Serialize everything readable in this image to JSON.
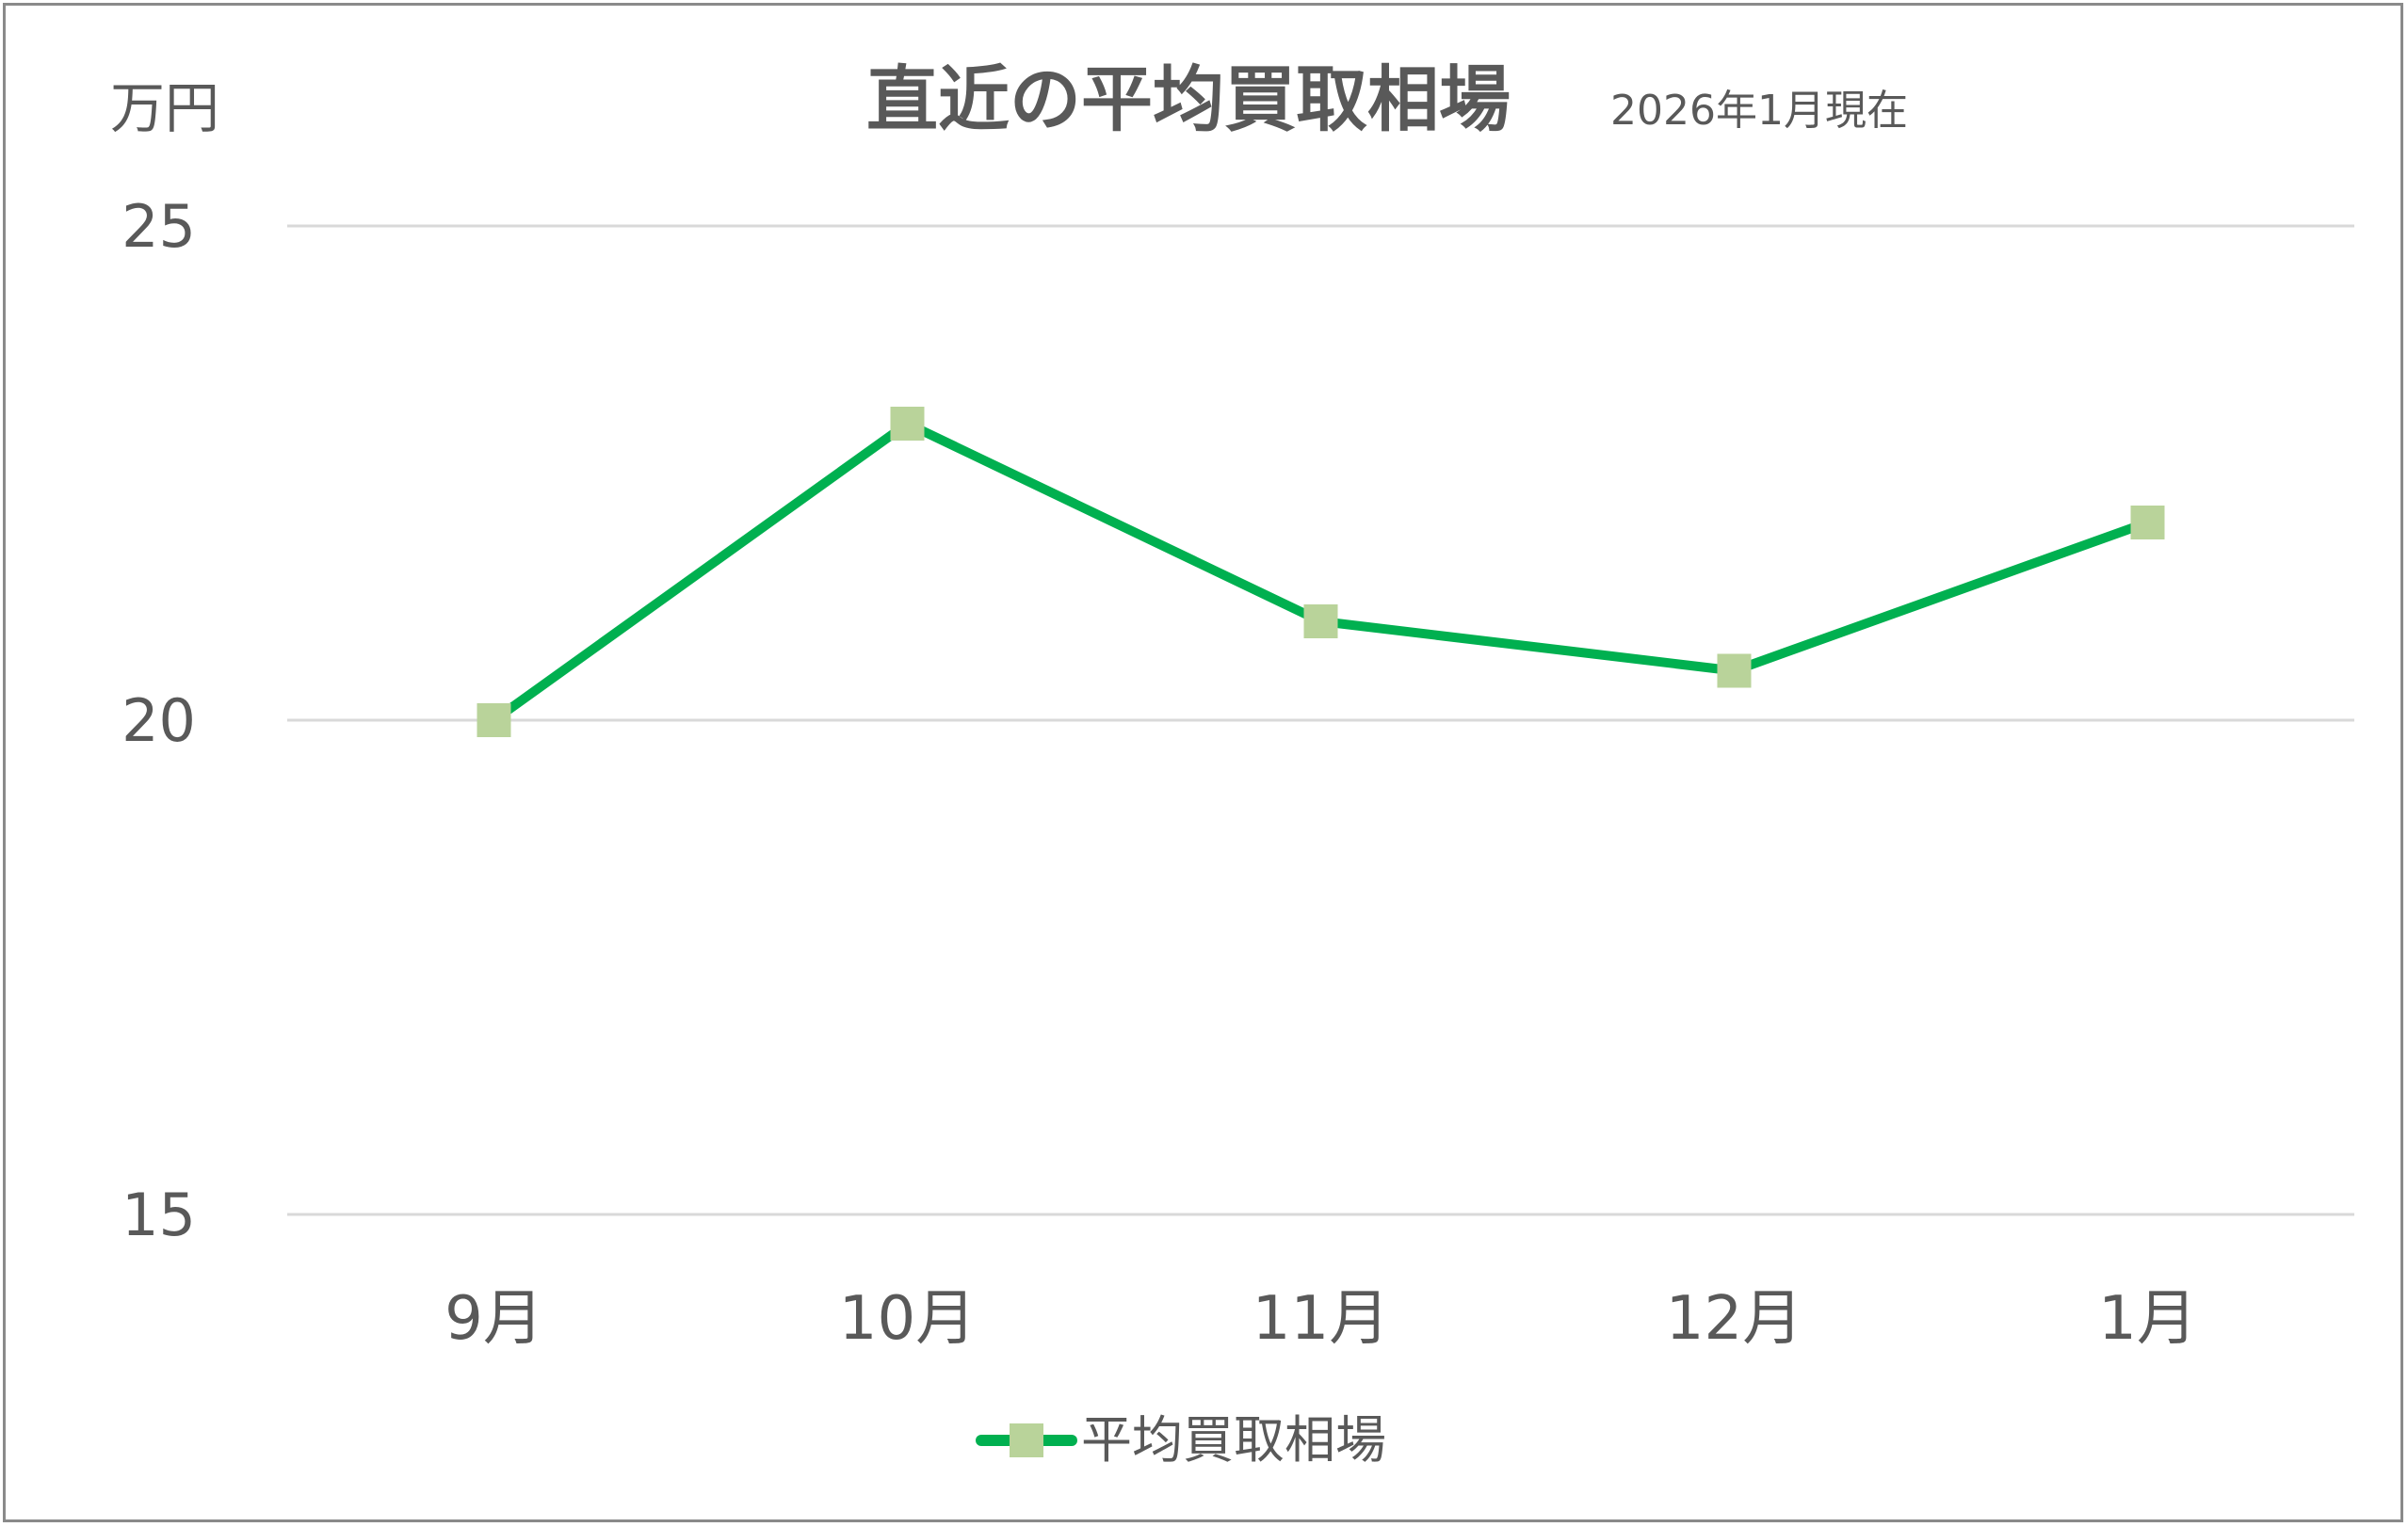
{
  "chart_data": {
    "type": "line",
    "title": "直近の平均買取相場",
    "subtitle": "2026年1月現在",
    "ylabel": "万円",
    "categories": [
      "9月",
      "10月",
      "11月",
      "12月",
      "1月"
    ],
    "series": [
      {
        "name": "平均買取相場",
        "values": [
          20.0,
          23.0,
          21.0,
          20.5,
          22.0
        ],
        "line_color": "#00B050",
        "marker_color": "#B9D39A",
        "marker": "square"
      }
    ],
    "ylim": [
      15,
      25
    ],
    "yticks": [
      25,
      20,
      15
    ],
    "grid": true,
    "legend_position": "bottom"
  }
}
